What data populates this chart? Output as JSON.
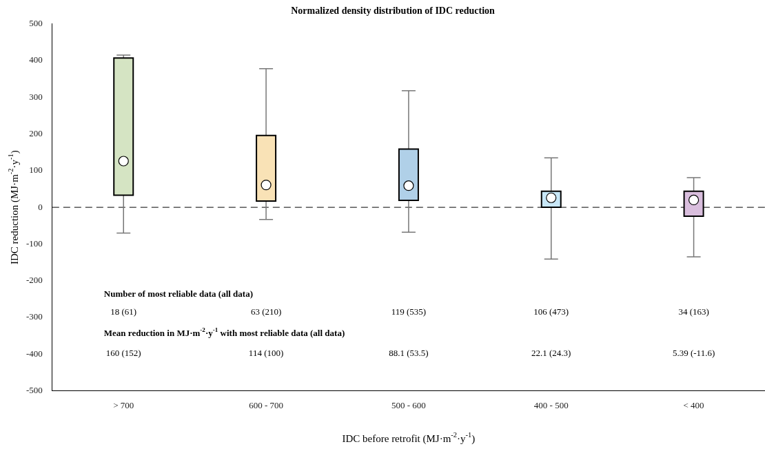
{
  "chart_data": {
    "type": "box",
    "title": "Normalized density distribution of IDC reduction",
    "xlabel": "IDC before retrofit (MJ·m$^{-2}$·y$^{-1}$)",
    "ylabel": "IDC reduction (MJ·m$^{-2}$·y$^{-1}$)",
    "categories": [
      "> 700",
      "600 - 700",
      "500 - 600",
      "400 - 500",
      "< 400"
    ],
    "boxes": [
      {
        "low": -70,
        "q1": 33,
        "median": 126,
        "q3": 407,
        "high": 415
      },
      {
        "low": -33,
        "q1": 17,
        "median": 61,
        "q3": 196,
        "high": 378
      },
      {
        "low": -68,
        "q1": 19,
        "median": 59,
        "q3": 159,
        "high": 318
      },
      {
        "low": -141,
        "q1": 0,
        "median": 26,
        "q3": 44,
        "high": 135
      },
      {
        "low": -135,
        "q1": -24,
        "median": 20,
        "q3": 44,
        "high": 81
      }
    ],
    "colors": [
      "#d5e4c3",
      "#f9e2b6",
      "#b0d0e8",
      "#c7e6f6",
      "#d9bedd"
    ],
    "ylim": [
      -500,
      500
    ],
    "yticks": [
      -500,
      -400,
      -300,
      -200,
      -100,
      0,
      100,
      200,
      300,
      400,
      500
    ],
    "ref_lines": [
      {
        "axis": "y",
        "value": 0,
        "color": "#000000",
        "line_style": "dashed"
      }
    ],
    "annotations": [
      "Number of most reliable data (all data)",
      "18 (61)",
      "63 (210)",
      "119 (535)",
      "106 (473)",
      "34 (163)",
      "Mean reduction in MJ·m$^{-2}$·y$^{-1}$ with most reliable data (all data)",
      "160 (152)",
      "114 (100)",
      "88.1 (53.5)",
      "22.1 (24.3)",
      "5.39 (-11.6)"
    ]
  }
}
